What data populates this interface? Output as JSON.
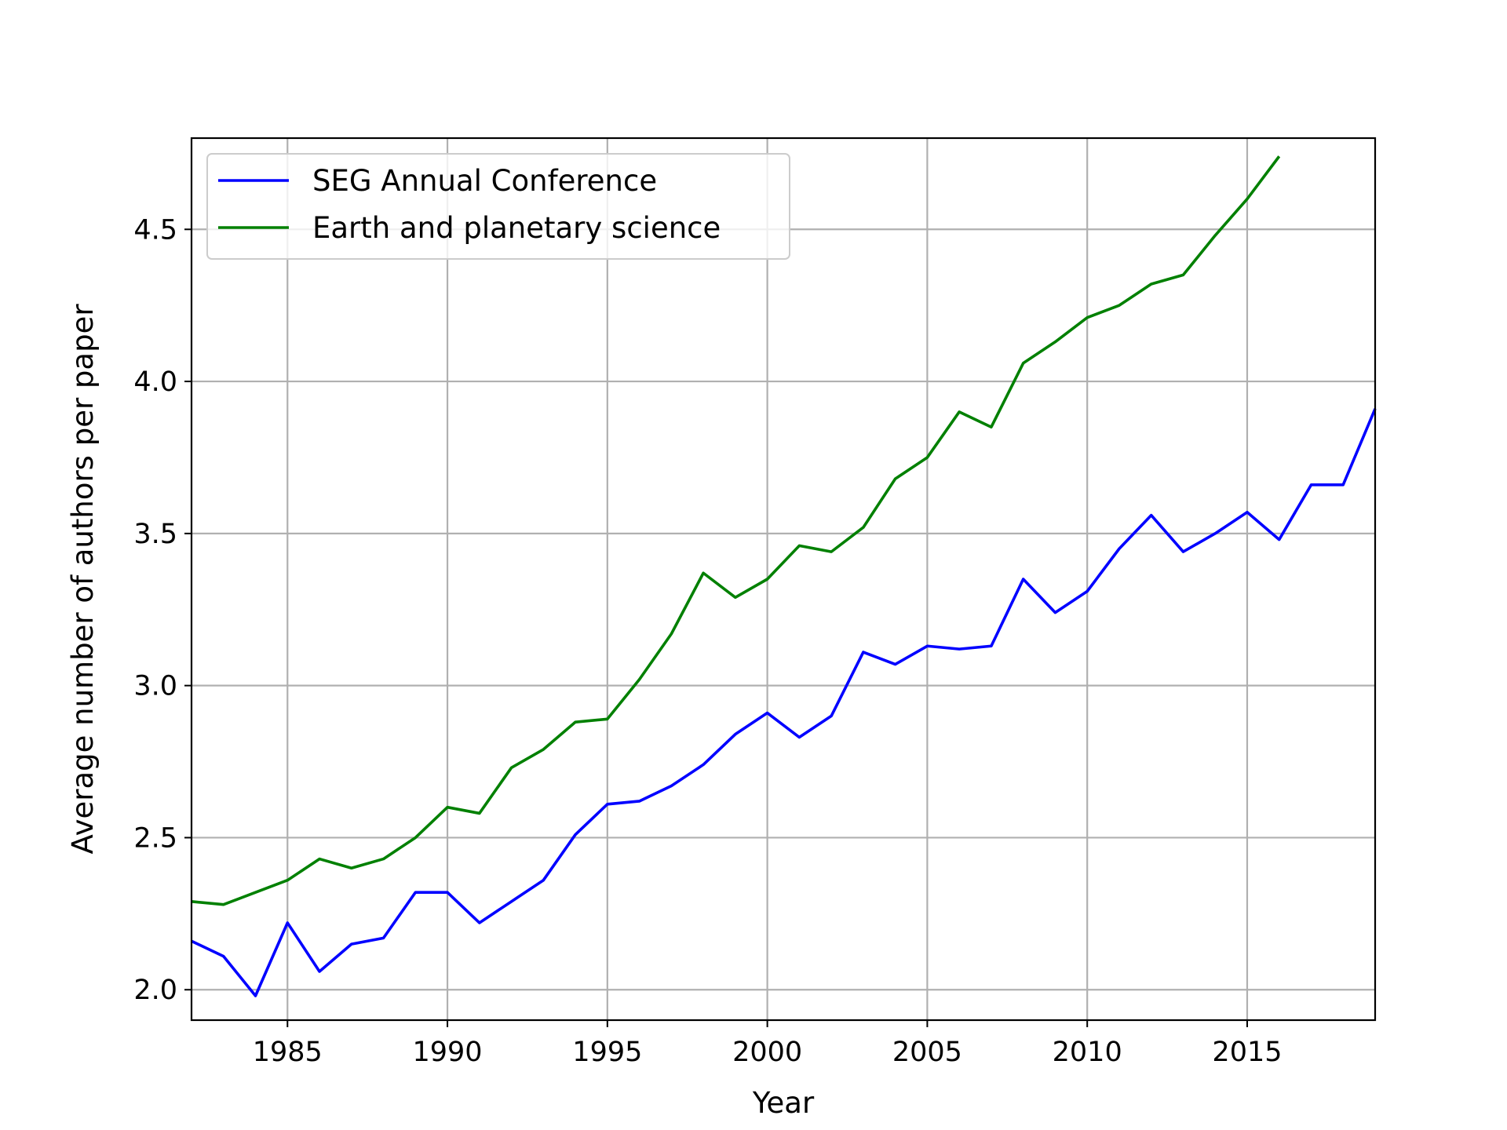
{
  "chart_data": {
    "type": "line",
    "title": "",
    "xlabel": "Year",
    "ylabel": "Average number of authors per paper",
    "xlim": [
      1982,
      2019
    ],
    "ylim": [
      1.9,
      4.8
    ],
    "xticks": [
      1985,
      1990,
      1995,
      2000,
      2005,
      2010,
      2015
    ],
    "yticks": [
      2.0,
      2.5,
      3.0,
      3.5,
      4.0,
      4.5
    ],
    "xtick_labels": [
      "1985",
      "1990",
      "1995",
      "2000",
      "2005",
      "2010",
      "2015"
    ],
    "ytick_labels": [
      "2.0",
      "2.5",
      "3.0",
      "3.5",
      "4.0",
      "4.5"
    ],
    "grid": true,
    "legend_position": "top-left",
    "series": [
      {
        "name": "SEG Annual Conference",
        "color": "#0000ff",
        "x": [
          1982,
          1983,
          1984,
          1985,
          1986,
          1987,
          1988,
          1989,
          1990,
          1991,
          1992,
          1993,
          1994,
          1995,
          1996,
          1997,
          1998,
          1999,
          2000,
          2001,
          2002,
          2003,
          2004,
          2005,
          2006,
          2007,
          2008,
          2009,
          2010,
          2011,
          2012,
          2013,
          2014,
          2015,
          2016,
          2017,
          2018,
          2019
        ],
        "values": [
          2.16,
          2.11,
          1.98,
          2.22,
          2.06,
          2.15,
          2.17,
          2.32,
          2.32,
          2.22,
          2.29,
          2.36,
          2.51,
          2.61,
          2.62,
          2.67,
          2.74,
          2.84,
          2.91,
          2.83,
          2.9,
          3.11,
          3.07,
          3.13,
          3.12,
          3.13,
          3.35,
          3.24,
          3.31,
          3.45,
          3.56,
          3.44,
          3.5,
          3.57,
          3.48,
          3.66,
          3.66,
          3.91
        ]
      },
      {
        "name": "Earth and planetary science",
        "color": "#008000",
        "x": [
          1982,
          1983,
          1984,
          1985,
          1986,
          1987,
          1988,
          1989,
          1990,
          1991,
          1992,
          1993,
          1994,
          1995,
          1996,
          1997,
          1998,
          1999,
          2000,
          2001,
          2002,
          2003,
          2004,
          2005,
          2006,
          2007,
          2008,
          2009,
          2010,
          2011,
          2012,
          2013,
          2014,
          2015,
          2016
        ],
        "values": [
          2.29,
          2.28,
          2.32,
          2.36,
          2.43,
          2.4,
          2.43,
          2.5,
          2.6,
          2.58,
          2.73,
          2.79,
          2.88,
          2.89,
          3.02,
          3.17,
          3.37,
          3.29,
          3.35,
          3.46,
          3.44,
          3.52,
          3.68,
          3.75,
          3.9,
          3.85,
          4.06,
          4.13,
          4.21,
          4.25,
          4.32,
          4.35,
          4.48,
          4.6,
          4.74
        ]
      }
    ]
  }
}
